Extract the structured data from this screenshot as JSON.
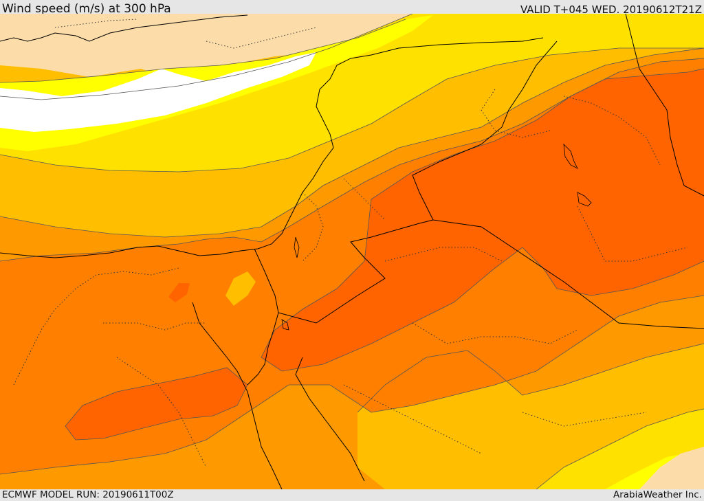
{
  "header": {
    "title": "Wind speed (m/s) at 300 hPa",
    "valid_time": "VALID T+045 WED. 20190612T21Z"
  },
  "footer": {
    "model_run": "ECMWF MODEL RUN: 20190611T00Z",
    "credit": "ArabiaWeather Inc."
  },
  "map": {
    "field": "wind speed at 300 hPa",
    "shading_colors": {
      "land_outside_data": "#fcdca8",
      "calm": "#ffffff",
      "light_yellow": "#ffff00",
      "yellow": "#ffe100",
      "amber": "#ffbe00",
      "orange": "#ff9900",
      "dark_orange": "#ff7f00",
      "red_orange": "#ff6400"
    },
    "contour_color": "#555555",
    "border_color": "#000000"
  }
}
